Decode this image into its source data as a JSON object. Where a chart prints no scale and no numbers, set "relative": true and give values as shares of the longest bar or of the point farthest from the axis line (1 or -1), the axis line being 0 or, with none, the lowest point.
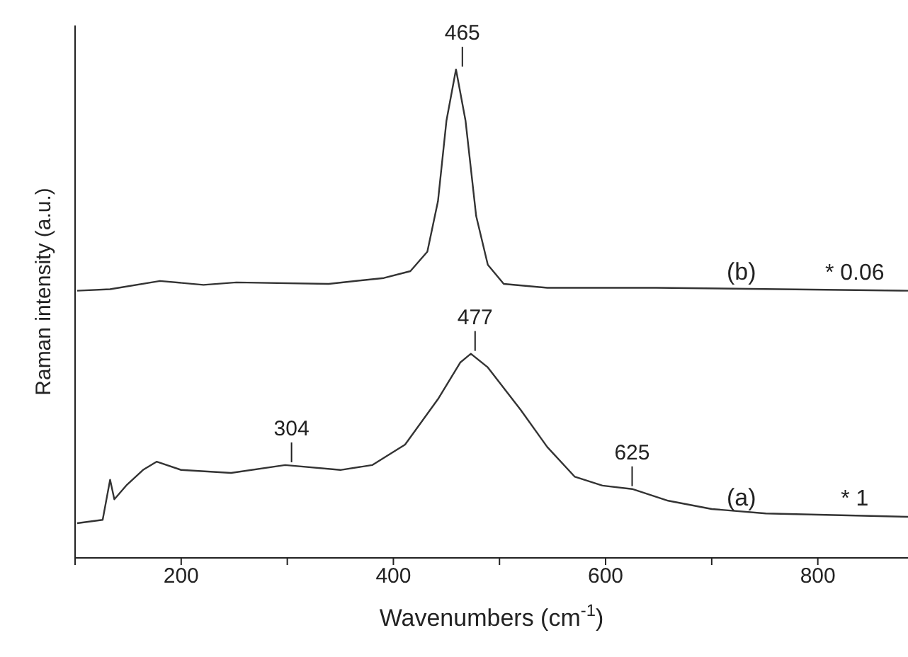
{
  "chart_data": {
    "type": "line",
    "xlabel": "Wavenumbers (cm$^{-1}$)",
    "ylabel": "Raman intensity (a.u.)",
    "relative": true,
    "xlim": [
      100,
      885
    ],
    "xticks": [
      {
        "value": 100,
        "label": null
      },
      200,
      {
        "value": 300,
        "label": null
      },
      400,
      {
        "value": 500,
        "label": null
      },
      600,
      {
        "value": 700,
        "label": null
      },
      800
    ],
    "marker": "none",
    "line_style": "solid",
    "series": [
      {
        "name": "(a)",
        "color": "#333333",
        "x": [
          102,
          126,
          133,
          137,
          149,
          164,
          177,
          200,
          247,
          298,
          350,
          380,
          411,
          442,
          463,
          473,
          489,
          520,
          545,
          571,
          597,
          625,
          659,
          700,
          751,
          885
        ],
        "values": [
          0.071,
          0.078,
          0.16,
          0.12,
          0.15,
          0.18,
          0.197,
          0.18,
          0.174,
          0.19,
          0.18,
          0.19,
          0.232,
          0.325,
          0.4,
          0.418,
          0.39,
          0.303,
          0.227,
          0.166,
          0.148,
          0.141,
          0.117,
          0.1,
          0.091,
          0.084
        ]
      },
      {
        "name": "(b)",
        "color": "#333333",
        "x": [
          102,
          133,
          180,
          221,
          252,
          339,
          391,
          416,
          432,
          442,
          450,
          459,
          468,
          478,
          489,
          504,
          545,
          648,
          885
        ],
        "values": [
          0.547,
          0.55,
          0.567,
          0.559,
          0.564,
          0.561,
          0.573,
          0.587,
          0.627,
          0.73,
          0.895,
          1.0,
          0.895,
          0.7,
          0.6,
          0.561,
          0.553,
          0.553,
          0.547
        ]
      }
    ],
    "annotations": [
      {
        "text": "304",
        "x": 304,
        "y": 0.19
      },
      {
        "text": "477",
        "x": 477,
        "y": 0.418
      },
      {
        "text": "625",
        "x": 625,
        "y": 0.141
      },
      {
        "text": "465",
        "x": 465,
        "y": 1.0
      },
      "* 1",
      "* 0.06"
    ]
  }
}
